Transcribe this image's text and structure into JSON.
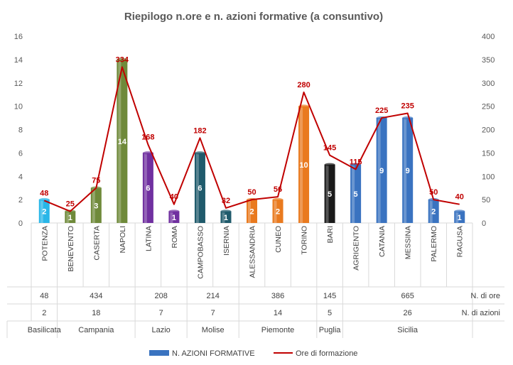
{
  "chart_data": {
    "type": "bar",
    "title": "Riepilogo n.ore e n. azioni formative (a consuntivo)",
    "categories": [
      "POTENZA",
      "BENEVENTO",
      "CASERTA",
      "NAPOLI",
      "LATINA",
      "ROMA",
      "CAMPOBASSO",
      "ISERNIA",
      "ALESSANDRIA",
      "CUNEO",
      "TORINO",
      "BARI",
      "AGRIGENTO",
      "CATANIA",
      "MESSINA",
      "PALERMO",
      "RAGUSA"
    ],
    "series": [
      {
        "name": "N. AZIONI FORMATIVE",
        "type": "bar",
        "axis": "left",
        "values": [
          2,
          1,
          3,
          14,
          6,
          1,
          6,
          1,
          2,
          2,
          10,
          5,
          5,
          9,
          9,
          2,
          1
        ]
      },
      {
        "name": "Ore di formazione",
        "type": "line",
        "axis": "right",
        "values": [
          48,
          25,
          75,
          334,
          168,
          40,
          182,
          32,
          50,
          56,
          280,
          145,
          115,
          225,
          235,
          50,
          40
        ]
      }
    ],
    "bar_colors": [
      "#29b6e8",
      "#6f8a3a",
      "#6f8a3a",
      "#6f8a3a",
      "#7030a0",
      "#7030a0",
      "#1f5a6b",
      "#1f5a6b",
      "#e97a1f",
      "#e97a1f",
      "#e97a1f",
      "#1a1a1a",
      "#3a73c0",
      "#3a73c0",
      "#3a73c0",
      "#3a73c0",
      "#3a73c0"
    ],
    "line_color": "#c00000",
    "ylim_left": [
      0,
      16
    ],
    "yticks_left": [
      0,
      2,
      4,
      6,
      8,
      10,
      12,
      14,
      16
    ],
    "ylim_right": [
      0,
      400
    ],
    "yticks_right": [
      0,
      50,
      100,
      150,
      200,
      250,
      300,
      350,
      400
    ],
    "grid": false,
    "legend_position": "bottom",
    "regions": [
      {
        "name": "Basilicata",
        "count": 1,
        "ore": "48",
        "azioni": "2"
      },
      {
        "name": "Campania",
        "count": 3,
        "ore": "434",
        "azioni": "18"
      },
      {
        "name": "Lazio",
        "count": 2,
        "ore": "208",
        "azioni": "7"
      },
      {
        "name": "Molise",
        "count": 2,
        "ore": "214",
        "azioni": "7"
      },
      {
        "name": "Piemonte",
        "count": 3,
        "ore": "386",
        "azioni": "14"
      },
      {
        "name": "Puglia",
        "count": 1,
        "ore": "145",
        "azioni": "5"
      },
      {
        "name": "Sicilia",
        "count": 5,
        "ore": "665",
        "azioni": "26"
      }
    ],
    "table_row_labels": {
      "ore": "N. di ore",
      "azioni": "N. di azioni"
    },
    "legend": {
      "bar": "N. AZIONI FORMATIVE",
      "line": "Ore di formazione"
    }
  }
}
